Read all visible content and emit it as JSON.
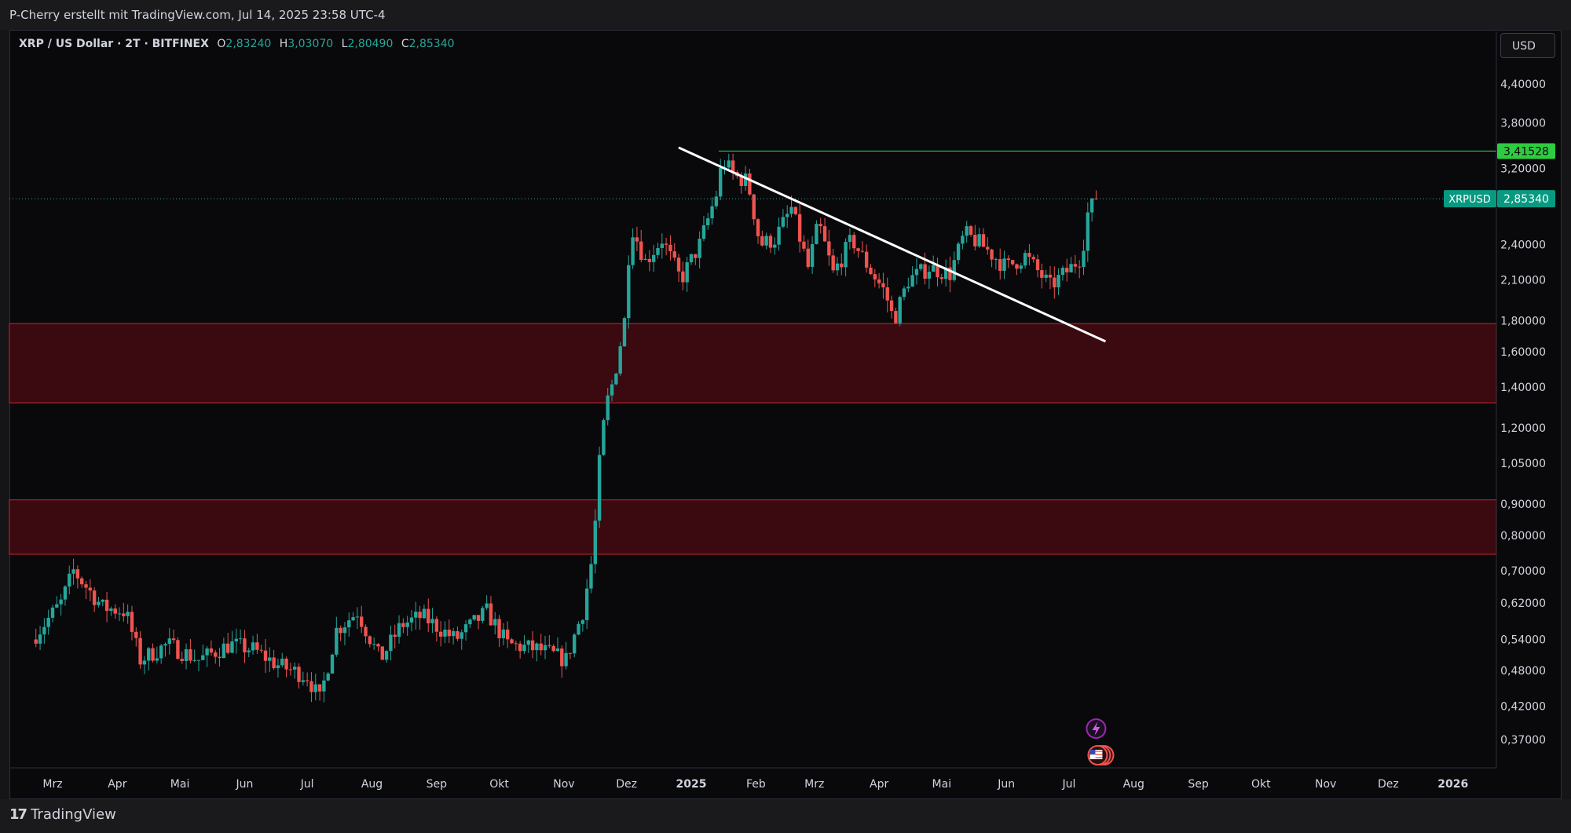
{
  "header": {
    "attribution": "P-Cherry erstellt mit TradingView.com, Jul 14, 2025 23:58 UTC-4"
  },
  "legend": {
    "symbol": "XRP / US Dollar · 2T · BITFINEX",
    "open_label": "O",
    "open": "2,83240",
    "high_label": "H",
    "high": "3,03070",
    "low_label": "L",
    "low": "2,80490",
    "close_label": "C",
    "close": "2,85340"
  },
  "currency_button": "USD",
  "footer": {
    "logo_icon": "tradingview-logo-icon",
    "brand": "TradingView"
  },
  "colors": {
    "up": "#26a69a",
    "down": "#ef5350",
    "zone": "#3a0a10",
    "zone_border": "#b0202a",
    "resistance": "#2ecc40",
    "trendline": "#ffffff"
  },
  "chart_data": {
    "type": "candlestick",
    "symbol": "XRPUSD",
    "scale": "log",
    "y_ticks": [
      "4,40000",
      "3,80000",
      "3,20000",
      "2,40000",
      "2,10000",
      "1,80000",
      "1,60000",
      "1,40000",
      "1,20000",
      "1,05000",
      "0,90000",
      "0,80000",
      "0,70000",
      "0,62000",
      "0,54000",
      "0,48000",
      "0,42000",
      "0,37000"
    ],
    "x_ticks": [
      "Mrz",
      "Apr",
      "Mai",
      "Jun",
      "Jul",
      "Aug",
      "Sep",
      "Okt",
      "Nov",
      "Dez",
      "2025",
      "Feb",
      "Mrz",
      "Apr",
      "Mai",
      "Jun",
      "Jul",
      "Aug",
      "Sep",
      "Okt",
      "Nov",
      "Dez",
      "2026"
    ],
    "price_labels": [
      {
        "text": "3,41528",
        "value": 3.41528,
        "kind": "resistance"
      },
      {
        "series": "XRPUSD",
        "text": "2,85340",
        "value": 2.8534,
        "kind": "last"
      }
    ],
    "zones": [
      {
        "from": 1.32,
        "to": 1.78
      },
      {
        "from": 0.745,
        "to": 0.915
      }
    ],
    "trendline": {
      "from": {
        "date": "2025-01-10",
        "price": 3.38
      },
      "to": {
        "date": "2025-07-14",
        "price": 1.83
      }
    },
    "resistance_level": 3.41528,
    "closes": [
      {
        "date": "2024-02-20",
        "close": 0.54
      },
      {
        "date": "2024-03-05",
        "close": 0.62
      },
      {
        "date": "2024-03-11",
        "close": 0.7
      },
      {
        "date": "2024-03-25",
        "close": 0.61
      },
      {
        "date": "2024-04-05",
        "close": 0.6
      },
      {
        "date": "2024-04-12",
        "close": 0.5
      },
      {
        "date": "2024-04-25",
        "close": 0.53
      },
      {
        "date": "2024-05-10",
        "close": 0.5
      },
      {
        "date": "2024-05-25",
        "close": 0.53
      },
      {
        "date": "2024-06-05",
        "close": 0.52
      },
      {
        "date": "2024-06-17",
        "close": 0.49
      },
      {
        "date": "2024-07-01",
        "close": 0.47
      },
      {
        "date": "2024-07-07",
        "close": 0.43
      },
      {
        "date": "2024-07-15",
        "close": 0.56
      },
      {
        "date": "2024-07-25",
        "close": 0.6
      },
      {
        "date": "2024-08-05",
        "close": 0.5
      },
      {
        "date": "2024-08-15",
        "close": 0.57
      },
      {
        "date": "2024-08-25",
        "close": 0.59
      },
      {
        "date": "2024-09-10",
        "close": 0.54
      },
      {
        "date": "2024-09-25",
        "close": 0.6
      },
      {
        "date": "2024-10-05",
        "close": 0.53
      },
      {
        "date": "2024-10-20",
        "close": 0.52
      },
      {
        "date": "2024-11-02",
        "close": 0.5
      },
      {
        "date": "2024-11-10",
        "close": 0.6
      },
      {
        "date": "2024-11-15",
        "close": 0.75
      },
      {
        "date": "2024-11-18",
        "close": 1.05
      },
      {
        "date": "2024-11-21",
        "close": 1.3
      },
      {
        "date": "2024-11-25",
        "close": 1.45
      },
      {
        "date": "2024-11-30",
        "close": 1.8
      },
      {
        "date": "2024-12-03",
        "close": 2.6
      },
      {
        "date": "2024-12-10",
        "close": 2.25
      },
      {
        "date": "2024-12-18",
        "close": 2.45
      },
      {
        "date": "2024-12-27",
        "close": 2.1
      },
      {
        "date": "2025-01-05",
        "close": 2.4
      },
      {
        "date": "2025-01-13",
        "close": 2.9
      },
      {
        "date": "2025-01-16",
        "close": 3.3
      },
      {
        "date": "2025-01-22",
        "close": 3.1
      },
      {
        "date": "2025-01-28",
        "close": 3.05
      },
      {
        "date": "2025-02-03",
        "close": 2.4
      },
      {
        "date": "2025-02-10",
        "close": 2.45
      },
      {
        "date": "2025-02-18",
        "close": 2.75
      },
      {
        "date": "2025-02-26",
        "close": 2.2
      },
      {
        "date": "2025-03-03",
        "close": 2.6
      },
      {
        "date": "2025-03-10",
        "close": 2.15
      },
      {
        "date": "2025-03-19",
        "close": 2.45
      },
      {
        "date": "2025-03-27",
        "close": 2.2
      },
      {
        "date": "2025-04-04",
        "close": 2.0
      },
      {
        "date": "2025-04-08",
        "close": 1.8
      },
      {
        "date": "2025-04-15",
        "close": 2.1
      },
      {
        "date": "2025-04-25",
        "close": 2.2
      },
      {
        "date": "2025-05-05",
        "close": 2.15
      },
      {
        "date": "2025-05-12",
        "close": 2.5
      },
      {
        "date": "2025-05-20",
        "close": 2.4
      },
      {
        "date": "2025-06-01",
        "close": 2.2
      },
      {
        "date": "2025-06-10",
        "close": 2.3
      },
      {
        "date": "2025-06-22",
        "close": 2.05
      },
      {
        "date": "2025-07-02",
        "close": 2.2
      },
      {
        "date": "2025-07-07",
        "close": 2.3
      },
      {
        "date": "2025-07-10",
        "close": 2.7
      },
      {
        "date": "2025-07-14",
        "close": 2.85
      }
    ]
  }
}
